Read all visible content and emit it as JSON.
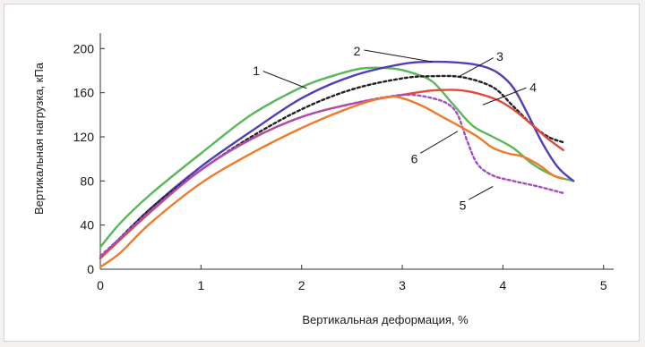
{
  "chart_data": {
    "type": "line",
    "title": "",
    "xlabel": "Вертикальная деформация, %",
    "ylabel": "Вертикальная нагрузка, кПа",
    "xlim": [
      0,
      5.1
    ],
    "ylim": [
      0,
      210
    ],
    "xticks": [
      "0",
      "1",
      "2",
      "3",
      "4",
      "5"
    ],
    "yticks": [
      "0",
      "40",
      "80",
      "120",
      "160",
      "200"
    ],
    "grid": false,
    "legend": "numbered callout labels",
    "series": [
      {
        "name": "1",
        "color": "#5bb85a",
        "dash": "",
        "points": [
          [
            0,
            20
          ],
          [
            0.2,
            42
          ],
          [
            0.5,
            68
          ],
          [
            1,
            105
          ],
          [
            1.5,
            140
          ],
          [
            2,
            165
          ],
          [
            2.3,
            175
          ],
          [
            2.6,
            182
          ],
          [
            2.9,
            182
          ],
          [
            3.1,
            178
          ],
          [
            3.3,
            170
          ],
          [
            3.5,
            150
          ],
          [
            3.7,
            130
          ],
          [
            3.9,
            120
          ],
          [
            4.1,
            110
          ],
          [
            4.3,
            95
          ],
          [
            4.5,
            85
          ],
          [
            4.7,
            80
          ]
        ]
      },
      {
        "name": "2",
        "color": "#5040b8",
        "dash": "",
        "points": [
          [
            0,
            10
          ],
          [
            0.5,
            55
          ],
          [
            1,
            93
          ],
          [
            1.5,
            125
          ],
          [
            2,
            155
          ],
          [
            2.5,
            175
          ],
          [
            3,
            186
          ],
          [
            3.3,
            188
          ],
          [
            3.6,
            187
          ],
          [
            3.8,
            184
          ],
          [
            3.95,
            178
          ],
          [
            4.1,
            165
          ],
          [
            4.25,
            140
          ],
          [
            4.4,
            113
          ],
          [
            4.55,
            92
          ],
          [
            4.7,
            80
          ]
        ]
      },
      {
        "name": "3",
        "color": "#222222",
        "dash": "3,3",
        "points": [
          [
            0,
            10
          ],
          [
            0.5,
            55
          ],
          [
            1,
            90
          ],
          [
            1.5,
            120
          ],
          [
            2,
            145
          ],
          [
            2.5,
            163
          ],
          [
            3,
            173
          ],
          [
            3.3,
            175
          ],
          [
            3.6,
            174
          ],
          [
            3.9,
            165
          ],
          [
            4.1,
            148
          ],
          [
            4.3,
            130
          ],
          [
            4.45,
            120
          ],
          [
            4.6,
            115
          ]
        ]
      },
      {
        "name": "4",
        "color": "#e04a36",
        "dash": "",
        "points": [
          [
            0,
            10
          ],
          [
            0.5,
            52
          ],
          [
            1,
            90
          ],
          [
            1.5,
            118
          ],
          [
            2,
            138
          ],
          [
            2.5,
            150
          ],
          [
            3,
            158
          ],
          [
            3.3,
            162
          ],
          [
            3.6,
            162
          ],
          [
            3.9,
            155
          ],
          [
            4.1,
            145
          ],
          [
            4.3,
            130
          ],
          [
            4.45,
            118
          ],
          [
            4.6,
            108
          ]
        ]
      },
      {
        "name": "5",
        "color": "#a64cc4",
        "dash": "3,3",
        "points": [
          [
            0,
            12
          ],
          [
            0.5,
            53
          ],
          [
            1,
            90
          ],
          [
            1.5,
            118
          ],
          [
            2,
            138
          ],
          [
            2.5,
            150
          ],
          [
            2.9,
            157
          ],
          [
            3.1,
            158
          ],
          [
            3.3,
            155
          ],
          [
            3.45,
            150
          ],
          [
            3.55,
            140
          ],
          [
            3.65,
            115
          ],
          [
            3.75,
            95
          ],
          [
            3.9,
            85
          ],
          [
            4.1,
            80
          ],
          [
            4.35,
            75
          ],
          [
            4.6,
            69
          ]
        ]
      },
      {
        "name": "6",
        "color": "#f07a2a",
        "dash": "",
        "points": [
          [
            0,
            2
          ],
          [
            0.2,
            15
          ],
          [
            0.5,
            42
          ],
          [
            1,
            78
          ],
          [
            1.5,
            105
          ],
          [
            2,
            128
          ],
          [
            2.5,
            147
          ],
          [
            2.85,
            156
          ],
          [
            3,
            155
          ],
          [
            3.2,
            148
          ],
          [
            3.4,
            138
          ],
          [
            3.6,
            128
          ],
          [
            3.75,
            120
          ],
          [
            3.9,
            110
          ],
          [
            4.05,
            105
          ],
          [
            4.2,
            102
          ],
          [
            4.35,
            95
          ],
          [
            4.5,
            85
          ],
          [
            4.6,
            82
          ]
        ]
      }
    ],
    "labels": [
      {
        "text": "1",
        "x": 1.55,
        "y": 180,
        "tx": 2.05,
        "ty": 164
      },
      {
        "text": "2",
        "x": 2.55,
        "y": 198,
        "tx": 3.3,
        "ty": 188
      },
      {
        "text": "3",
        "x": 3.97,
        "y": 193,
        "tx": 3.55,
        "ty": 174
      },
      {
        "text": "4",
        "x": 4.3,
        "y": 165,
        "tx": 3.8,
        "ty": 149
      },
      {
        "text": "5",
        "x": 3.6,
        "y": 58,
        "tx": 3.9,
        "ty": 75
      },
      {
        "text": "6",
        "x": 3.12,
        "y": 100,
        "tx": 3.55,
        "ty": 125
      }
    ]
  }
}
